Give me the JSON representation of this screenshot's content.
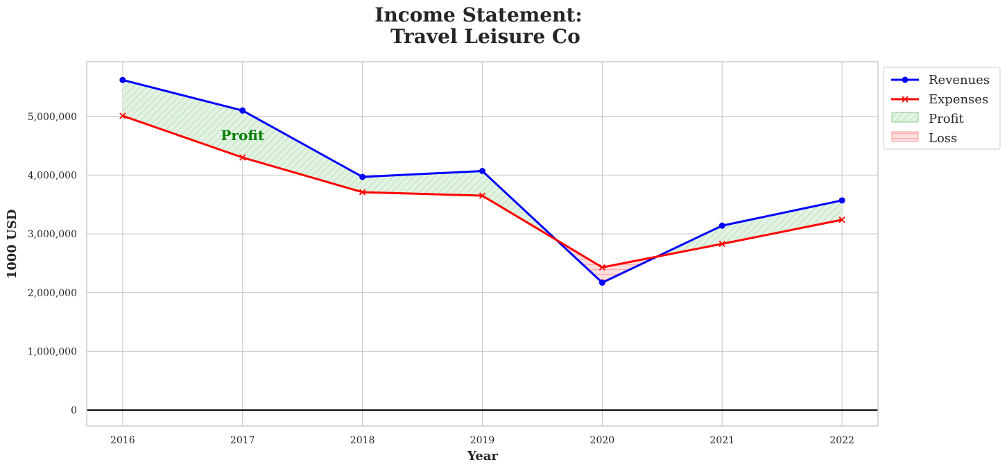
{
  "chart_data": {
    "type": "line",
    "title_line1": "Income Statement:",
    "title_line2": "Travel Leisure Co",
    "xlabel": "Year",
    "ylabel": "1000 USD",
    "x": [
      2016,
      2017,
      2018,
      2019,
      2020,
      2021,
      2022
    ],
    "x_tick_labels": [
      "2016",
      "2017",
      "2018",
      "2019",
      "2020",
      "2021",
      "2022"
    ],
    "y_ticks": [
      0,
      1000000,
      2000000,
      3000000,
      4000000,
      5000000
    ],
    "y_tick_labels": [
      "0",
      "1,000,000",
      "2,000,000",
      "3,000,000",
      "4,000,000",
      "5,000,000"
    ],
    "ylim": [
      -270000,
      5930000
    ],
    "xlim": [
      2015.7,
      2022.3
    ],
    "grid": true,
    "legend_position": "outside-top-right",
    "series": [
      {
        "name": "Revenues",
        "color": "#0000ff",
        "marker": "circle",
        "values": [
          5620000,
          5100000,
          3970000,
          4070000,
          2170000,
          3140000,
          3570000
        ]
      },
      {
        "name": "Expenses",
        "color": "#ff0000",
        "marker": "x",
        "values": [
          5010000,
          4300000,
          3710000,
          3650000,
          2430000,
          2830000,
          3240000
        ]
      }
    ],
    "fill_legend": [
      {
        "name": "Profit",
        "color": "#2ca02c"
      },
      {
        "name": "Loss",
        "color": "#ff6b6b"
      }
    ],
    "annotation": {
      "text": "Profit",
      "x": 2017.0,
      "y": 4680000,
      "color": "#008000"
    }
  }
}
